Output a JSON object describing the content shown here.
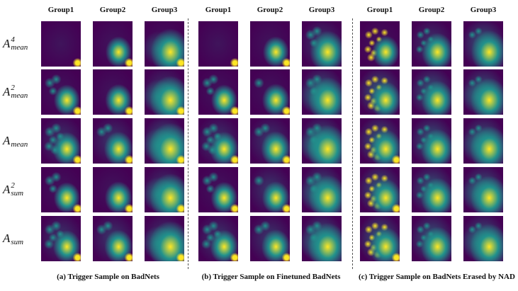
{
  "group_labels": [
    "Group1",
    "Group2",
    "Group3"
  ],
  "rows": [
    {
      "base": "A",
      "sub": "mean",
      "sup": "4"
    },
    {
      "base": "A",
      "sub": "mean",
      "sup": "2"
    },
    {
      "base": "A",
      "sub": "mean",
      "sup": ""
    },
    {
      "base": "A",
      "sub": "sum",
      "sup": "2"
    },
    {
      "base": "A",
      "sub": "sum",
      "sup": ""
    }
  ],
  "panels": [
    {
      "caption": "(a) Trigger Sample on BadNets"
    },
    {
      "caption": "(b) Trigger Sample on Finetuned BadNets"
    },
    {
      "caption": "(c) Trigger Sample on BadNets Erased by NAD"
    }
  ],
  "colors": {
    "heatmap_low": "#440154",
    "heatmap_mid": "#21918c",
    "heatmap_high": "#fde725"
  }
}
